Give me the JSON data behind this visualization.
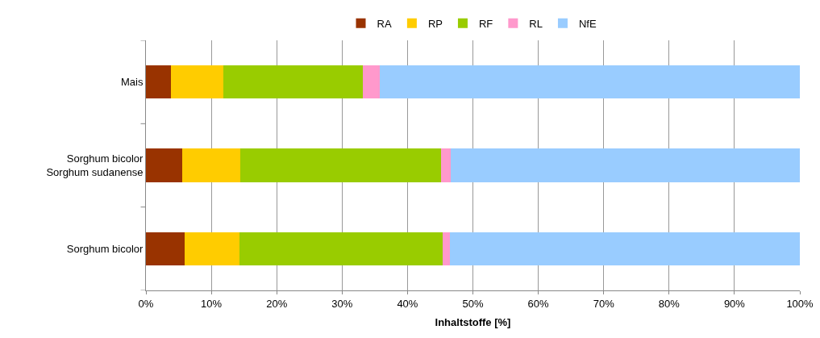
{
  "chart_data": {
    "type": "bar",
    "orientation": "horizontal",
    "stacked": true,
    "xlabel": "Inhaltstoffe [%]",
    "categories": [
      "Mais",
      "Sorghum bicolor\nSorghum sudanense",
      "Sorghum bicolor"
    ],
    "series": [
      {
        "name": "RA",
        "color": "#993300",
        "values": [
          3.8,
          5.5,
          5.9
        ]
      },
      {
        "name": "RP",
        "color": "#ffcc00",
        "values": [
          8.0,
          8.9,
          8.4
        ]
      },
      {
        "name": "RF",
        "color": "#99cc00",
        "values": [
          21.4,
          30.7,
          31.1
        ]
      },
      {
        "name": "RL",
        "color": "#ff99cc",
        "values": [
          2.6,
          1.5,
          1.1
        ]
      },
      {
        "name": "NfE",
        "color": "#99ccff",
        "values": [
          64.2,
          53.4,
          53.5
        ]
      }
    ],
    "xlim": [
      0,
      100
    ],
    "xticks": [
      {
        "value": 0,
        "label": "0%"
      },
      {
        "value": 10,
        "label": "10%"
      },
      {
        "value": 20,
        "label": "20%"
      },
      {
        "value": 30,
        "label": "30%"
      },
      {
        "value": 40,
        "label": "40%"
      },
      {
        "value": 50,
        "label": "50%"
      },
      {
        "value": 60,
        "label": "60%"
      },
      {
        "value": 70,
        "label": "70%"
      },
      {
        "value": 80,
        "label": "80%"
      },
      {
        "value": 90,
        "label": "90%"
      },
      {
        "value": 100,
        "label": "100%"
      }
    ],
    "grid": "x",
    "legend": "top"
  }
}
